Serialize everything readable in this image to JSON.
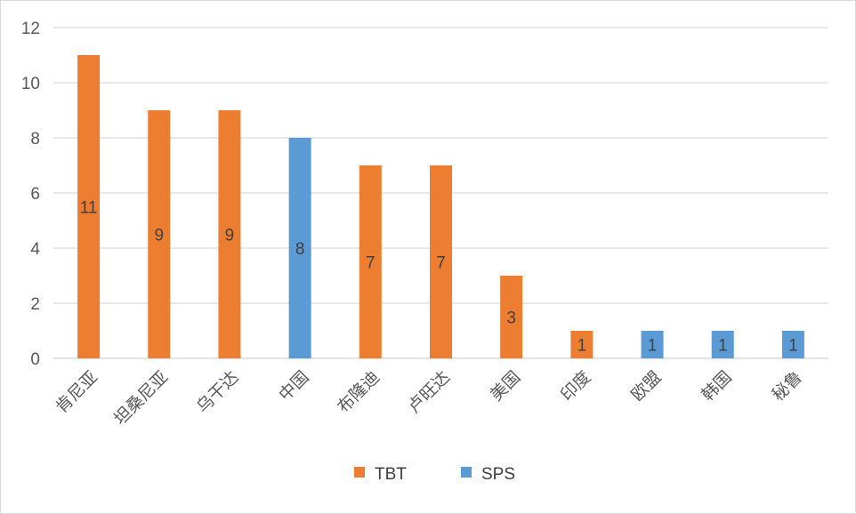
{
  "chart_data": {
    "type": "bar",
    "categories": [
      "肯尼亚",
      "坦桑尼亚",
      "乌干达",
      "中国",
      "布隆迪",
      "卢旺达",
      "美国",
      "印度",
      "欧盟",
      "韩国",
      "秘鲁"
    ],
    "series": [
      {
        "name": "TBT",
        "color": "#ED7D31",
        "values": [
          11,
          9,
          9,
          null,
          7,
          7,
          3,
          1,
          null,
          null,
          null
        ]
      },
      {
        "name": "SPS",
        "color": "#5B9BD5",
        "values": [
          null,
          null,
          null,
          8,
          null,
          null,
          null,
          null,
          1,
          1,
          1
        ]
      }
    ],
    "yticks": [
      "0",
      "2",
      "4",
      "6",
      "8",
      "10",
      "12"
    ],
    "ylim": [
      0,
      12
    ],
    "grid": true,
    "legend_position": "bottom",
    "title": "",
    "xlabel": "",
    "ylabel": ""
  }
}
